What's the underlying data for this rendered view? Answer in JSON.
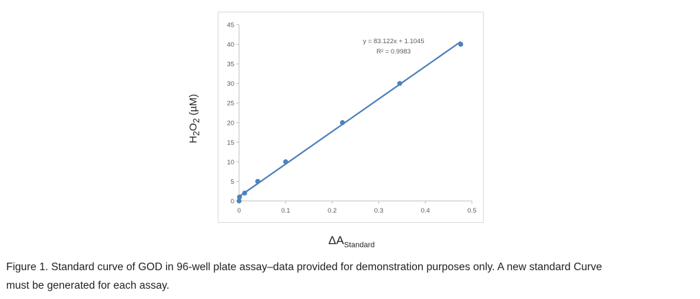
{
  "chart_data": {
    "type": "scatter",
    "x": [
      0,
      0.001,
      0.012,
      0.04,
      0.1,
      0.222,
      0.345,
      0.476
    ],
    "y": [
      0,
      1,
      2,
      5,
      10,
      20,
      30,
      40
    ],
    "xlim": [
      0,
      0.5
    ],
    "ylim": [
      0,
      45
    ],
    "x_ticks": [
      "0",
      "0.1",
      "0.2",
      "0.3",
      "0.4",
      "0.5"
    ],
    "y_ticks": [
      "0",
      "5",
      "10",
      "15",
      "20",
      "25",
      "30",
      "35",
      "40",
      "45"
    ],
    "trendline": {
      "slope": 83.122,
      "intercept": 1.1045
    },
    "equation": "y = 83.122x + 1.1045",
    "r_squared": "R² = 0.9983",
    "ylabel": {
      "base": "H",
      "sub1": "2",
      "mid": "O",
      "sub2": "2",
      "rest": " (µM)"
    },
    "xlabel": {
      "base": "ΔA",
      "sub": "Standard"
    },
    "grid": false,
    "marker_color": "#4f81bd",
    "line_color": "#4a7ebb"
  },
  "caption": {
    "line1": "Figure 1. Standard curve of GOD in 96-well plate assay–data provided for demonstration purposes only. A new standard Curve",
    "line2": "must be generated for each assay."
  }
}
